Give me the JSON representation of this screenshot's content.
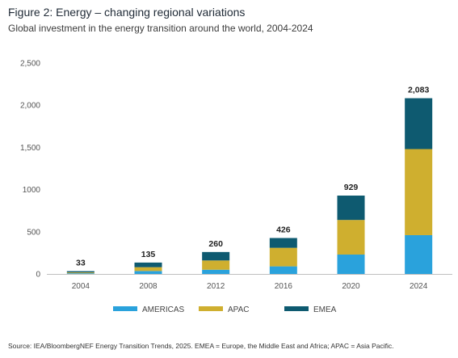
{
  "chart_data": {
    "type": "bar",
    "stacked": true,
    "title": "Figure 2: Energy – changing regional variations",
    "subtitle": "Global investment in the energy transition around the world, 2004-2024",
    "xlabel": "",
    "ylabel": "",
    "categories": [
      "2004",
      "2008",
      "2012",
      "2016",
      "2020",
      "2024"
    ],
    "ylim": [
      0,
      2500
    ],
    "yticks": [
      0,
      500,
      1000,
      1500,
      2000,
      2500
    ],
    "ytick_labels": [
      "0",
      "500",
      "1000",
      "1,500",
      "2,000",
      "2,500"
    ],
    "totals": [
      33,
      135,
      260,
      426,
      929,
      2083
    ],
    "total_labels": [
      "33",
      "135",
      "260",
      "426",
      "929",
      "2,083"
    ],
    "series": [
      {
        "name": "AMERICAS",
        "color": "#2aa2dc",
        "values": [
          8,
          35,
          50,
          90,
          230,
          460
        ]
      },
      {
        "name": "APAC",
        "color": "#cfaf2f",
        "values": [
          10,
          45,
          110,
          220,
          410,
          1020
        ]
      },
      {
        "name": "EMEA",
        "color": "#0e5a70",
        "values": [
          15,
          55,
          100,
          116,
          289,
          603
        ]
      }
    ],
    "legend_position": "bottom",
    "grid": false
  },
  "source": "Source: IEA/BloombergNEF Energy Transition Trends, 2025. EMEA = Europe, the Middle East and Africa; APAC = Asia Pacific."
}
